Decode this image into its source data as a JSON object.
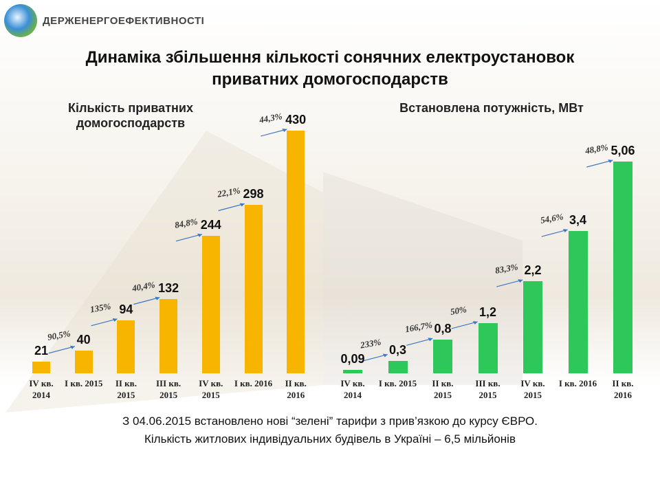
{
  "header": {
    "org": "ДЕРЖЕНЕРГОЕФЕКТИВНОСТІ"
  },
  "title": [
    "Динаміка збільшення кількості сонячних електроустановок",
    "приватних домогосподарств"
  ],
  "chart_data": [
    {
      "type": "bar",
      "title": [
        "Кількість приватних",
        "домогосподарств"
      ],
      "categories": [
        "IV кв. 2014",
        "I кв. 2015",
        "II кв. 2015",
        "III кв. 2015",
        "IV кв. 2015",
        "I кв. 2016",
        "II кв. 2016"
      ],
      "values": [
        21,
        40,
        94,
        132,
        244,
        298,
        430
      ],
      "color": "#f7b500",
      "annotations": [
        "90,5%",
        "135%",
        "40,4%",
        "84,8%",
        "22,1%",
        "44,3%"
      ]
    },
    {
      "type": "bar",
      "title": "Встановлена потужність, МВт",
      "categories": [
        "IV кв. 2014",
        "I кв. 2015",
        "II кв. 2015",
        "III кв. 2015",
        "IV кв. 2015",
        "I кв. 2016",
        "II кв. 2016"
      ],
      "values": [
        0.09,
        0.3,
        0.8,
        1.2,
        2.2,
        3.4,
        5.06
      ],
      "value_labels": [
        "0,09",
        "0,3",
        "0,8",
        "1,2",
        "2,2",
        "3,4",
        "5,06"
      ],
      "color": "#2ec85a",
      "annotations": [
        "233%",
        "166,7%",
        "50%",
        "83,3%",
        "54,6%",
        "48,8%"
      ]
    }
  ],
  "footnote": [
    "З 04.06.2015 встановлено нові “зелені” тарифи з прив’язкою до курсу ЄВРО.",
    "Кількість житлових  індивідуальних  будівель в Україні – 6,5 мільйонів"
  ]
}
